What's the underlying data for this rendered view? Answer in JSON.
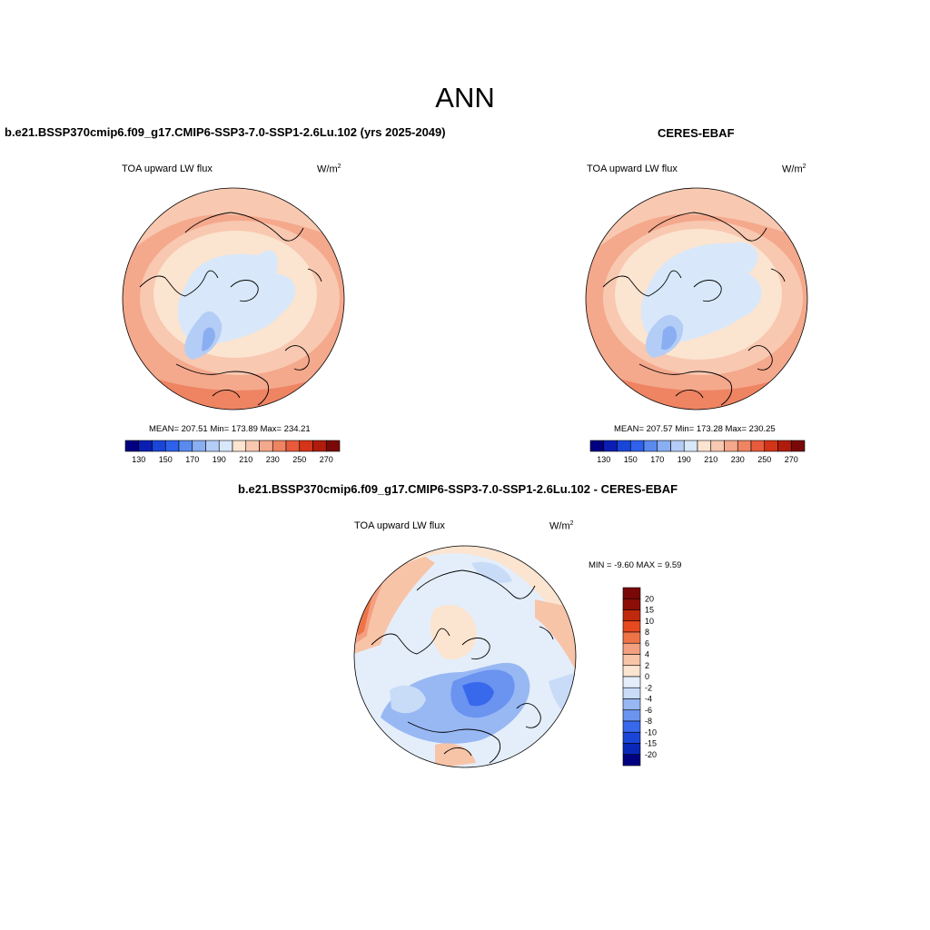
{
  "main_title": "ANN",
  "colors": {
    "abs_scale": [
      "#000080",
      "#0a1eb4",
      "#1a46d8",
      "#2e62ec",
      "#5a8aee",
      "#8aaef2",
      "#b4cdf6",
      "#d8e8fa",
      "#fbe4d0",
      "#f8c8b0",
      "#f4a88c",
      "#ee8462",
      "#e85a3c",
      "#d43418",
      "#b01c0c",
      "#7a0808"
    ],
    "diff_scale": [
      "#000080",
      "#0a28b8",
      "#1a46d8",
      "#3868ec",
      "#6a94f0",
      "#98b8f4",
      "#c8dcf8",
      "#e4eefa",
      "#fbe4d0",
      "#f8c4a8",
      "#f4a080",
      "#ee7448",
      "#e64a1e",
      "#c02a0c",
      "#8c0e06",
      "#7a0808"
    ]
  },
  "panels": [
    {
      "title": "b.e21.BSSP370cmip6.f09_g17.CMIP6-SSP3-7.0-SSP1-2.6Lu.102 (yrs 2025-2049)",
      "variable": "TOA upward LW flux",
      "units": "W/m",
      "units_sup": "2",
      "stats": "MEAN= 207.51  Min= 173.89  Max= 234.21",
      "colorbar_ticks": [
        "130",
        "150",
        "170",
        "190",
        "210",
        "230",
        "250",
        "270"
      ]
    },
    {
      "title": "CERES-EBAF",
      "variable": "TOA upward LW flux",
      "units": "W/m",
      "units_sup": "2",
      "stats": "MEAN= 207.57  Min= 173.28  Max= 230.25",
      "colorbar_ticks": [
        "130",
        "150",
        "170",
        "190",
        "210",
        "230",
        "250",
        "270"
      ]
    },
    {
      "title": "b.e21.BSSP370cmip6.f09_g17.CMIP6-SSP3-7.0-SSP1-2.6Lu.102 - CERES-EBAF",
      "variable": "TOA upward LW flux",
      "units": "W/m",
      "units_sup": "2",
      "stats": "MIN =  -9.60 MAX =   9.59",
      "colorbar_ticks": [
        "20",
        "15",
        "10",
        "8",
        "6",
        "4",
        "2",
        "0",
        "-2",
        "-4",
        "-6",
        "-8",
        "-10",
        "-15",
        "-20"
      ]
    }
  ]
}
